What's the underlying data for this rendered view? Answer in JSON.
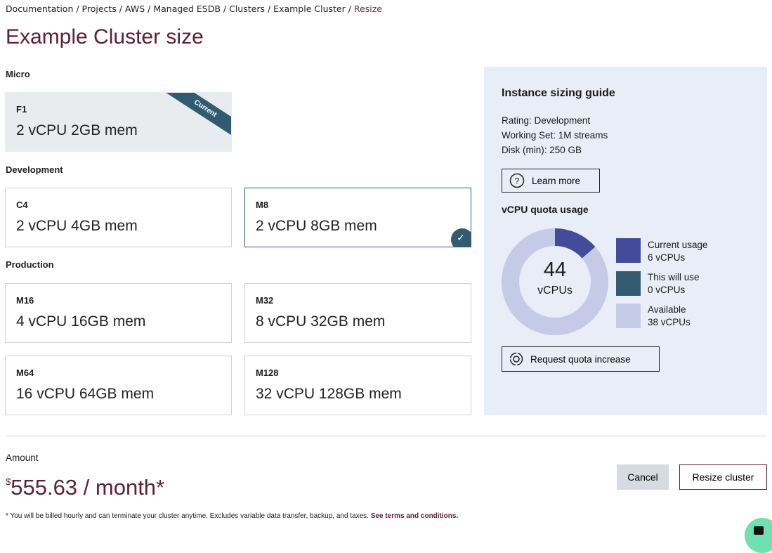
{
  "breadcrumb": {
    "items": [
      "Documentation",
      "Projects",
      "AWS",
      "Managed ESDB",
      "Clusters",
      "Example Cluster"
    ],
    "current": "Resize",
    "separator": " / "
  },
  "page_title": "Example Cluster size",
  "sections": {
    "micro": "Micro",
    "development": "Development",
    "production": "Production"
  },
  "instances": [
    {
      "code": "F1",
      "spec": "2 vCPU 2GB mem",
      "badge": "Current"
    },
    {
      "code": "C4",
      "spec": "2 vCPU 4GB mem"
    },
    {
      "code": "M8",
      "spec": "2 vCPU 8GB mem",
      "selected": true
    },
    {
      "code": "M16",
      "spec": "4 vCPU 16GB mem"
    },
    {
      "code": "M32",
      "spec": "8 vCPU 32GB mem"
    },
    {
      "code": "M64",
      "spec": "16 vCPU 64GB mem"
    },
    {
      "code": "M128",
      "spec": "32 vCPU 128GB mem"
    }
  ],
  "guide": {
    "title": "Instance sizing guide",
    "rating": "Rating: Development",
    "working_set": "Working Set: 1M streams",
    "disk": "Disk (min): 250 GB",
    "learn_more": "Learn more",
    "learn_icon": "question-circle-icon"
  },
  "quota": {
    "title": "vCPU quota usage",
    "total": "44",
    "unit": "vCPUs",
    "legend": [
      {
        "label": "Current usage",
        "value": "6 vCPUs",
        "amount": 6,
        "color": "#434b9a"
      },
      {
        "label": "This will use",
        "value": "0 vCPUs",
        "amount": 0,
        "color": "#325a70"
      },
      {
        "label": "Available",
        "value": "38 vCPUs",
        "amount": 38,
        "color": "#c5cae6"
      }
    ],
    "request": "Request quota increase",
    "request_icon": "target-icon"
  },
  "footer": {
    "amount_label": "Amount",
    "currency": "$",
    "price": "555.63 / month*",
    "note": "* You will be billed hourly and can terminate your cluster anytime. Excludes variable data transfer, backup, and taxes.",
    "terms": "See terms and conditions.",
    "cancel": "Cancel",
    "resize": "Resize cluster"
  },
  "colors": {
    "accent": "#5a2237",
    "selected": "#325a70",
    "panel": "#e9edf8"
  }
}
